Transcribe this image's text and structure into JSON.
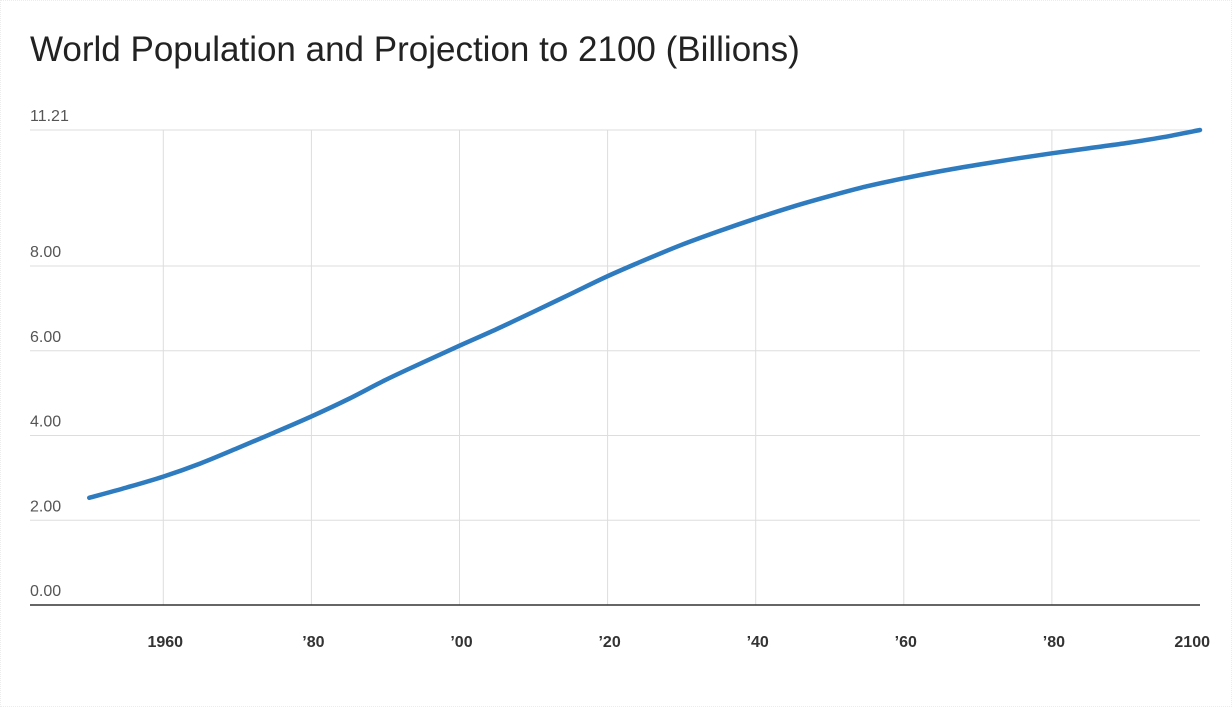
{
  "colors": {
    "series": "#2e7bbf",
    "grid": "#dddddd",
    "baseline": "#333333",
    "title": "#222222"
  },
  "chart_data": {
    "type": "line",
    "title": "World Population and Projection to 2100 (Billions)",
    "xlabel": "",
    "ylabel": "",
    "xlim": [
      1942,
      2100
    ],
    "ylim": [
      0,
      11.21
    ],
    "grid": true,
    "legend": "none",
    "y_ticks": [
      {
        "value": 0,
        "label": "0.00"
      },
      {
        "value": 2,
        "label": "2.00"
      },
      {
        "value": 4,
        "label": "4.00"
      },
      {
        "value": 6,
        "label": "6.00"
      },
      {
        "value": 8,
        "label": "8.00"
      },
      {
        "value": 11.21,
        "label": "11.21"
      }
    ],
    "x_ticks": [
      {
        "value": 1960,
        "label": "1960"
      },
      {
        "value": 1980,
        "label": "’80"
      },
      {
        "value": 2000,
        "label": "’00"
      },
      {
        "value": 2020,
        "label": "’20"
      },
      {
        "value": 2040,
        "label": "’40"
      },
      {
        "value": 2060,
        "label": "’60"
      },
      {
        "value": 2080,
        "label": "’80"
      },
      {
        "value": 2100,
        "label": "2100"
      }
    ],
    "series": [
      {
        "x": [
          1950,
          1955,
          1960,
          1965,
          1970,
          1975,
          1980,
          1985,
          1990,
          1995,
          2000,
          2005,
          2010,
          2015,
          2020,
          2025,
          2030,
          2035,
          2040,
          2045,
          2050,
          2055,
          2060,
          2065,
          2070,
          2075,
          2080,
          2085,
          2090,
          2095,
          2100
        ],
        "values": [
          2.53,
          2.77,
          3.03,
          3.34,
          3.7,
          4.07,
          4.45,
          4.86,
          5.31,
          5.72,
          6.12,
          6.51,
          6.92,
          7.34,
          7.76,
          8.14,
          8.5,
          8.82,
          9.12,
          9.4,
          9.65,
          9.88,
          10.07,
          10.24,
          10.39,
          10.53,
          10.66,
          10.78,
          10.9,
          11.04,
          11.21
        ]
      }
    ]
  }
}
